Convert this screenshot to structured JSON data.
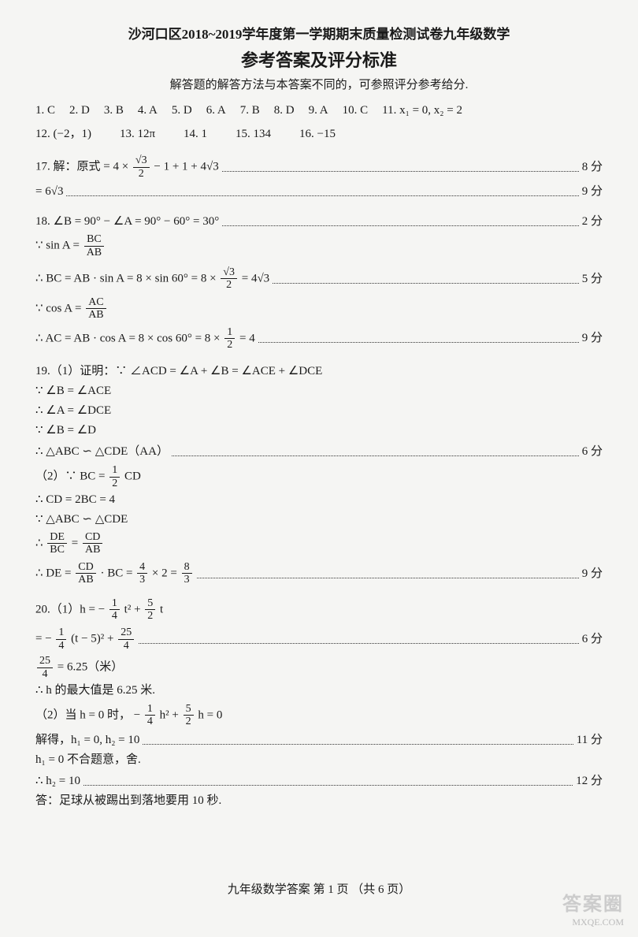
{
  "header": {
    "title": "沙河口区2018~2019学年度第一学期期末质量检测试卷九年级数学",
    "subtitle": "参考答案及评分标准",
    "note": "解答题的解答方法与本答案不同的，可参照评分参考给分."
  },
  "answers_row1": [
    {
      "n": "1.",
      "v": "C"
    },
    {
      "n": "2.",
      "v": "D"
    },
    {
      "n": "3.",
      "v": "B"
    },
    {
      "n": "4.",
      "v": "A"
    },
    {
      "n": "5.",
      "v": "D"
    },
    {
      "n": "6.",
      "v": "A"
    },
    {
      "n": "7.",
      "v": "B"
    },
    {
      "n": "8.",
      "v": "D"
    },
    {
      "n": "9.",
      "v": "A"
    },
    {
      "n": "10.",
      "v": "C"
    },
    {
      "n": "11.",
      "v": "x₁ = 0,  x₂ = 2"
    }
  ],
  "answers_row2": [
    {
      "n": "12.",
      "v": "(−2，1)"
    },
    {
      "n": "13.",
      "v": "12π"
    },
    {
      "n": "14.",
      "v": "1"
    },
    {
      "n": "15.",
      "v": "134"
    },
    {
      "n": "16.",
      "v": "−15"
    }
  ],
  "p17": {
    "line1_pre": "17. 解：原式 = 4 ×",
    "line1_frac_num": "√3",
    "line1_frac_den": "2",
    "line1_post": "− 1 + 1 + 4√3",
    "line1_score": "8 分",
    "line2": "= 6√3",
    "line2_score": "9 分"
  },
  "p18": {
    "line1": "18.  ∠B = 90° − ∠A = 90° − 60° = 30°",
    "line1_score": "2 分",
    "line2_pre": "∵ sin A =",
    "line2_frac_num": "BC",
    "line2_frac_den": "AB",
    "line3_pre": "∴ BC = AB · sin A = 8 × sin 60° = 8 ×",
    "line3_frac_num": "√3",
    "line3_frac_den": "2",
    "line3_post": "= 4√3",
    "line3_score": "5 分",
    "line4_pre": "∵ cos A =",
    "line4_frac_num": "AC",
    "line4_frac_den": "AB",
    "line5_pre": "∴ AC = AB · cos A = 8 × cos 60° = 8 ×",
    "line5_frac_num": "1",
    "line5_frac_den": "2",
    "line5_post": "= 4",
    "line5_score": "9 分"
  },
  "p19": {
    "line1": "19.（1）证明：∵ ∠ACD = ∠A + ∠B = ∠ACE + ∠DCE",
    "line2": "∵ ∠B = ∠ACE",
    "line3": "∴ ∠A = ∠DCE",
    "line4": "∵ ∠B = ∠D",
    "line5": "∴ △ABC ∽ △CDE（AA）",
    "line5_score": "6 分",
    "line6_pre": "（2）∵ BC =",
    "line6_frac_num": "1",
    "line6_frac_den": "2",
    "line6_post": "CD",
    "line7": "∴ CD = 2BC = 4",
    "line8": "∵ △ABC ∽ △CDE",
    "line9_pre": "∴",
    "line9_frac1_num": "DE",
    "line9_frac1_den": "BC",
    "line9_mid": "=",
    "line9_frac2_num": "CD",
    "line9_frac2_den": "AB",
    "line10_pre": "∴ DE =",
    "line10_frac1_num": "CD",
    "line10_frac1_den": "AB",
    "line10_mid1": "· BC =",
    "line10_frac2_num": "4",
    "line10_frac2_den": "3",
    "line10_mid2": "× 2 =",
    "line10_frac3_num": "8",
    "line10_frac3_den": "3",
    "line10_score": "9 分"
  },
  "p20": {
    "line1_pre": "20.（1）h = −",
    "line1_frac1_num": "1",
    "line1_frac1_den": "4",
    "line1_mid1": "t² +",
    "line1_frac2_num": "5",
    "line1_frac2_den": "2",
    "line1_post": "t",
    "line2_pre": "= −",
    "line2_frac1_num": "1",
    "line2_frac1_den": "4",
    "line2_mid1": "(t − 5)² +",
    "line2_frac2_num": "25",
    "line2_frac2_den": "4",
    "line2_score": "6 分",
    "line3_frac_num": "25",
    "line3_frac_den": "4",
    "line3_post": "= 6.25（米）",
    "line4": "∴ h 的最大值是 6.25 米.",
    "line5_pre": "（2）当 h = 0 时，  −",
    "line5_frac1_num": "1",
    "line5_frac1_den": "4",
    "line5_mid1": "h² +",
    "line5_frac2_num": "5",
    "line5_frac2_den": "2",
    "line5_post": "h = 0",
    "line6": "解得，h₁ = 0,  h₂ = 10",
    "line6_score": "11 分",
    "line7": "h₁ = 0 不合题意，舍.",
    "line8": "∴ h₂ = 10",
    "line8_score": "12 分",
    "line9": "答：足球从被踢出到落地要用 10 秒."
  },
  "footer": "九年级数学答案    第 1 页   （共 6 页）",
  "watermark": {
    "big": "答案圈",
    "small": "MXQE.COM"
  }
}
